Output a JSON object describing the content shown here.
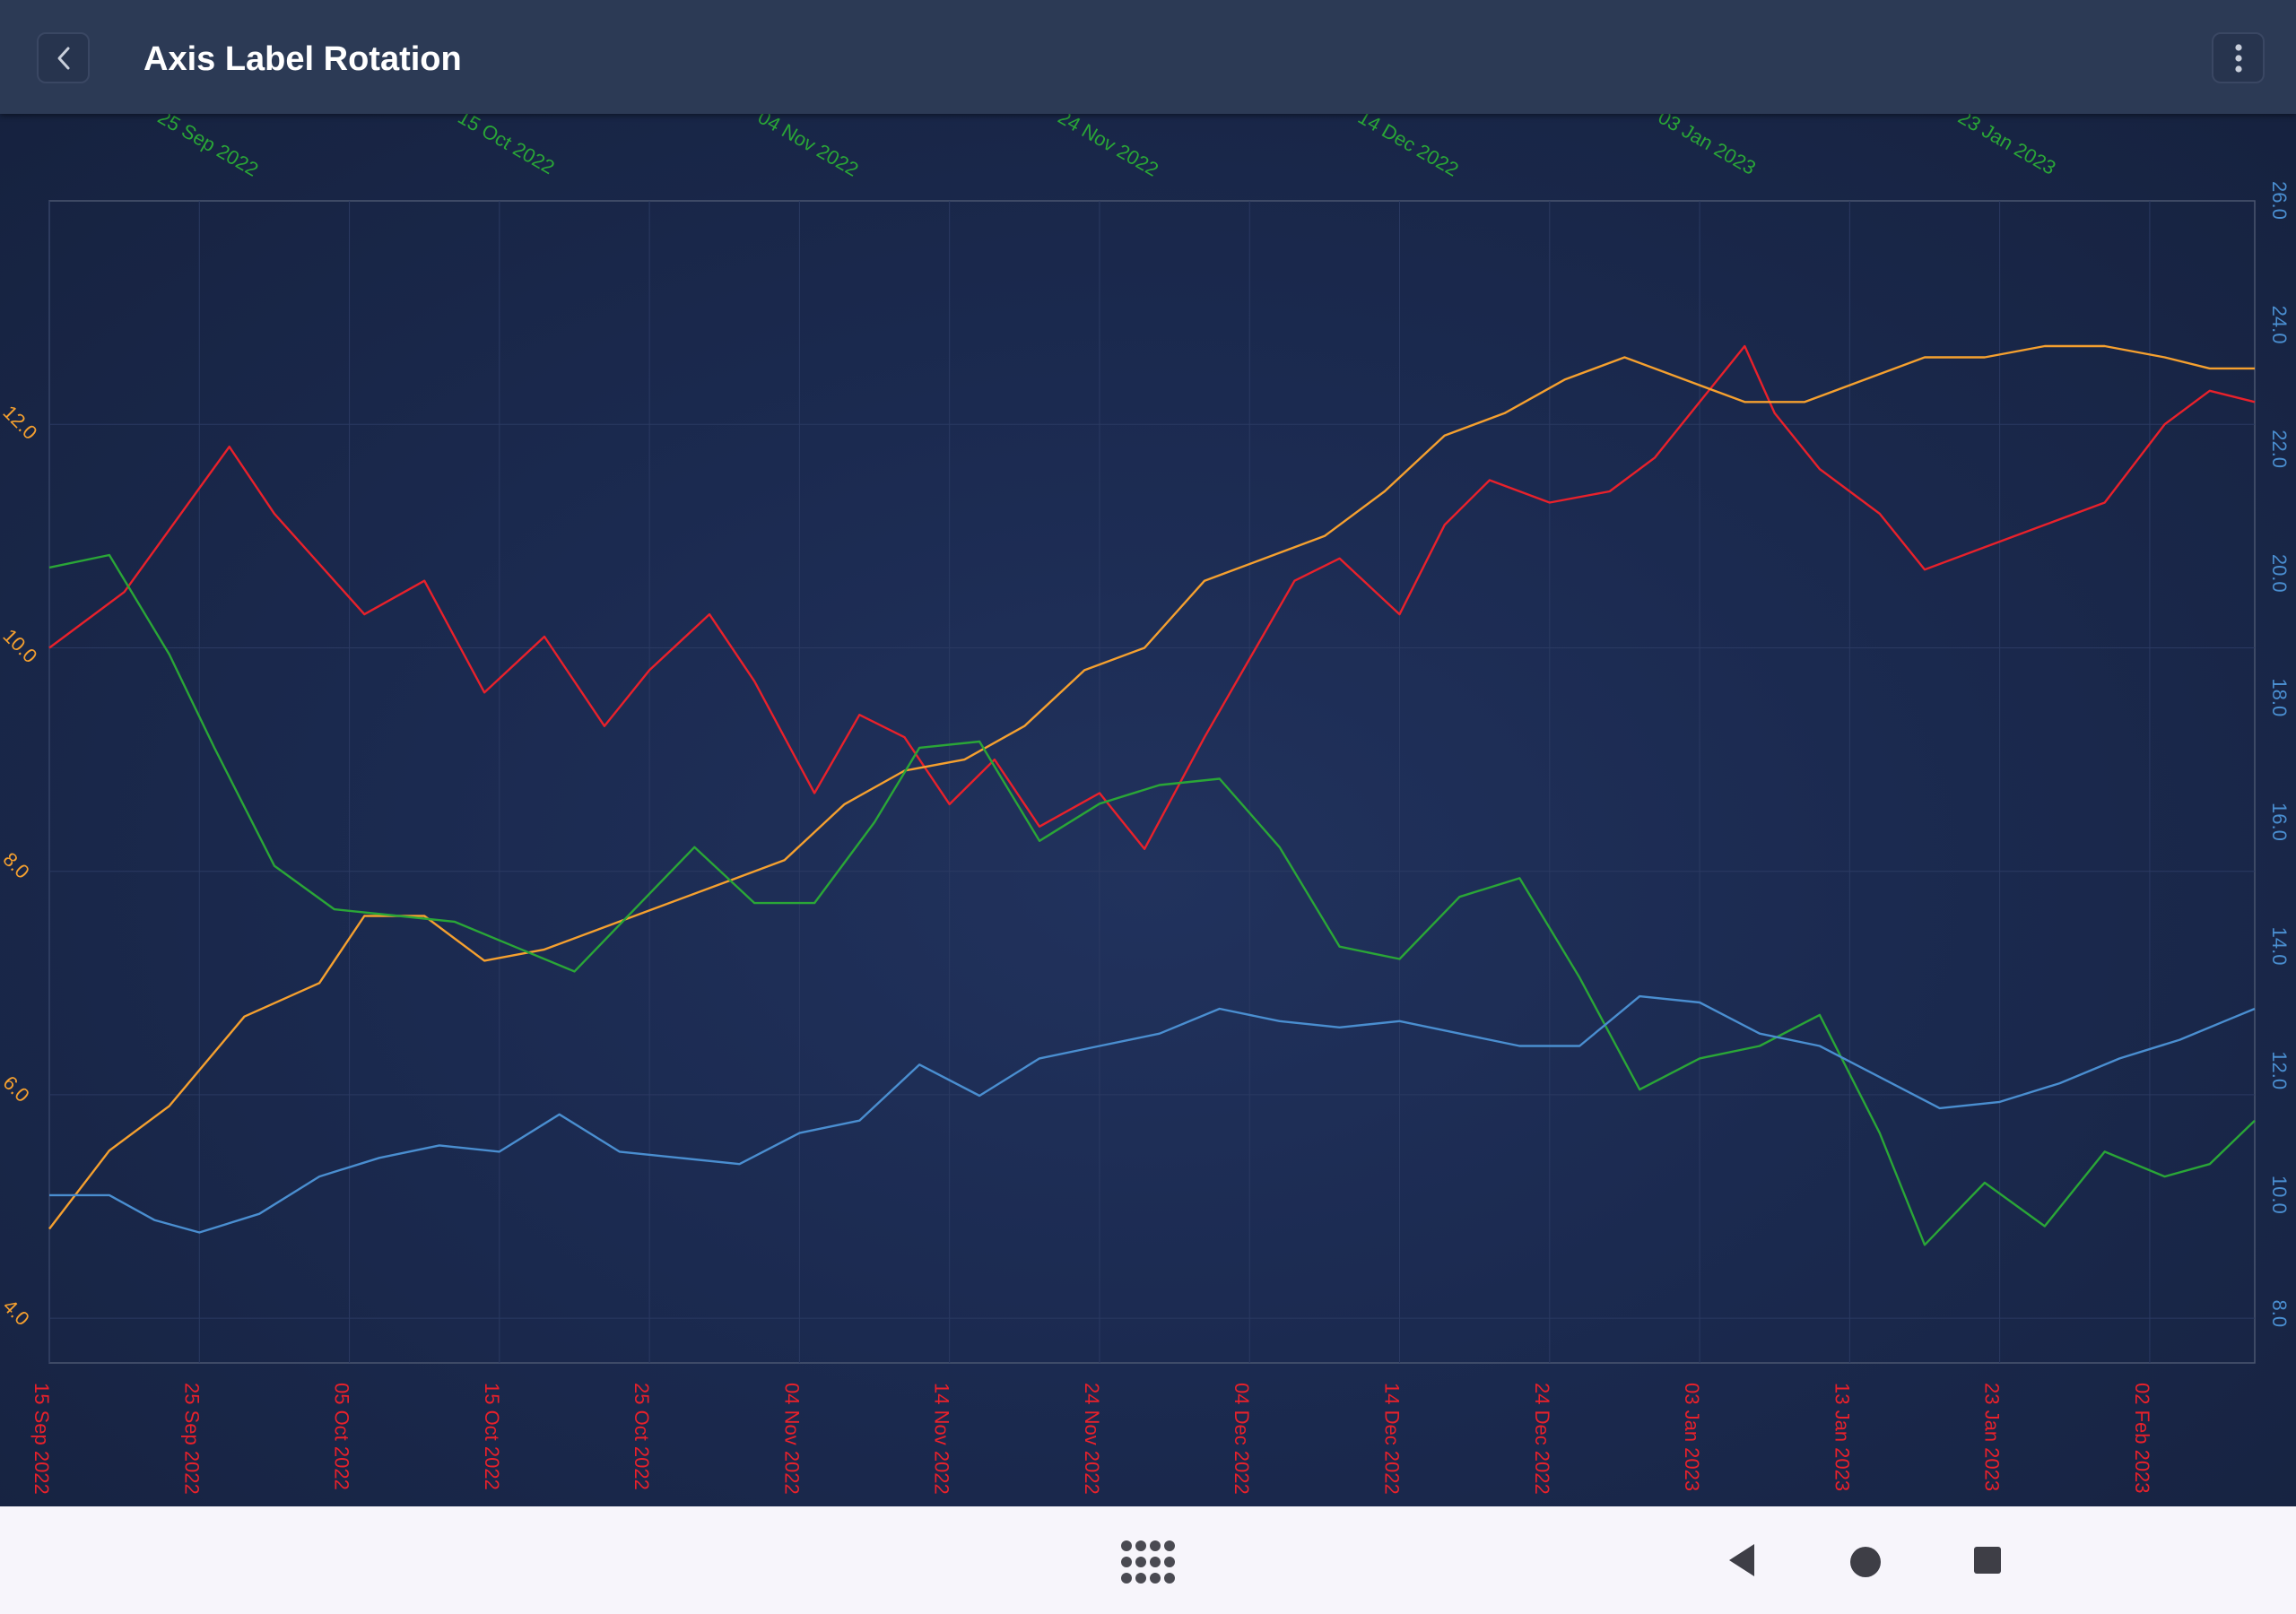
{
  "app_bar": {
    "title": "Axis Label Rotation",
    "back_icon": "chevron-left-icon",
    "menu_icon": "more-vertical-icon"
  },
  "nav_bar": {
    "icons": [
      "apps-grid-icon",
      "back-triangle-icon",
      "home-circle-icon",
      "recents-square-icon"
    ]
  },
  "colors": {
    "app_bar": "#2c3a55",
    "background": "#1b2a50",
    "red": "#e8212b",
    "orange": "#f5a02f",
    "green": "#2aa637",
    "blue": "#4a8ed0"
  },
  "chart_data": {
    "type": "line",
    "title": "",
    "x_axis_bottom": {
      "type": "date",
      "label_color": "#e8212b",
      "label_rotation": "90",
      "tick_labels": [
        "15 Sep 2022",
        "25 Sep 2022",
        "05 Oct 2022",
        "15 Oct 2022",
        "25 Oct 2022",
        "04 Nov 2022",
        "14 Nov 2022",
        "24 Nov 2022",
        "04 Dec 2022",
        "14 Dec 2022",
        "24 Dec 2022",
        "03 Jan 2023",
        "13 Jan 2023",
        "23 Jan 2023",
        "02 Feb 2023"
      ],
      "range": [
        "2022-09-15",
        "2023-02-09"
      ]
    },
    "x_axis_top": {
      "type": "date",
      "label_color": "#2aa637",
      "label_rotation": "30",
      "tick_labels": [
        "25 Sep 2022",
        "15 Oct 2022",
        "04 Nov 2022",
        "24 Nov 2022",
        "14 Dec 2022",
        "03 Jan 2023",
        "23 Jan 2023"
      ]
    },
    "y_axis_left": {
      "label_color": "#f5a02f",
      "label_rotation": "45",
      "tick_labels": [
        "4.0",
        "6.0",
        "8.0",
        "10.0",
        "12.0"
      ],
      "range": [
        3.6,
        14.0
      ]
    },
    "y_axis_right": {
      "label_color": "#4a8ed0",
      "label_rotation": "90",
      "tick_labels": [
        "8.0",
        "10.0",
        "12.0",
        "14.0",
        "16.0",
        "18.0",
        "20.0",
        "22.0",
        "24.0",
        "26.0"
      ],
      "range": [
        7.3,
        26.0
      ]
    },
    "grid": true,
    "legend": "none",
    "series": [
      {
        "color": "#e8212b",
        "axis": "left",
        "x": [
          "2022-09-15",
          "2022-09-20",
          "2022-09-27",
          "2022-09-30",
          "2022-10-06",
          "2022-10-10",
          "2022-10-14",
          "2022-10-18",
          "2022-10-22",
          "2022-10-25",
          "2022-10-29",
          "2022-11-01",
          "2022-11-05",
          "2022-11-08",
          "2022-11-11",
          "2022-11-14",
          "2022-11-17",
          "2022-11-20",
          "2022-11-24",
          "2022-11-27",
          "2022-12-01",
          "2022-12-04",
          "2022-12-07",
          "2022-12-10",
          "2022-12-14",
          "2022-12-17",
          "2022-12-20",
          "2022-12-24",
          "2022-12-28",
          "2022-12-31",
          "2023-01-03",
          "2023-01-06",
          "2023-01-08",
          "2023-01-11",
          "2023-01-15",
          "2023-01-18",
          "2023-01-22",
          "2023-01-26",
          "2023-01-30",
          "2023-02-03",
          "2023-02-06",
          "2023-02-09"
        ],
        "y": [
          10.0,
          10.5,
          11.8,
          11.2,
          10.3,
          10.6,
          9.6,
          10.1,
          9.3,
          9.8,
          10.3,
          9.7,
          8.7,
          9.4,
          9.2,
          8.6,
          9.0,
          8.4,
          8.7,
          8.2,
          9.2,
          9.9,
          10.6,
          10.8,
          10.3,
          11.1,
          11.5,
          11.3,
          11.4,
          11.7,
          12.2,
          12.7,
          12.1,
          11.6,
          11.2,
          10.7,
          10.9,
          11.1,
          11.3,
          12.0,
          12.3,
          12.2
        ]
      },
      {
        "color": "#f5a02f",
        "axis": "left",
        "x": [
          "2022-09-15",
          "2022-09-19",
          "2022-09-23",
          "2022-09-28",
          "2022-10-03",
          "2022-10-06",
          "2022-10-10",
          "2022-10-14",
          "2022-10-18",
          "2022-10-22",
          "2022-10-26",
          "2022-10-30",
          "2022-11-03",
          "2022-11-07",
          "2022-11-11",
          "2022-11-15",
          "2022-11-19",
          "2022-11-23",
          "2022-11-27",
          "2022-12-01",
          "2022-12-05",
          "2022-12-09",
          "2022-12-13",
          "2022-12-17",
          "2022-12-21",
          "2022-12-25",
          "2022-12-29",
          "2023-01-02",
          "2023-01-06",
          "2023-01-10",
          "2023-01-14",
          "2023-01-18",
          "2023-01-22",
          "2023-01-26",
          "2023-01-30",
          "2023-02-03",
          "2023-02-06",
          "2023-02-09"
        ],
        "y": [
          4.8,
          5.5,
          5.9,
          6.7,
          7.0,
          7.6,
          7.6,
          7.2,
          7.3,
          7.5,
          7.7,
          7.9,
          8.1,
          8.6,
          8.9,
          9.0,
          9.3,
          9.8,
          10.0,
          10.6,
          10.8,
          11.0,
          11.4,
          11.9,
          12.1,
          12.4,
          12.6,
          12.4,
          12.2,
          12.2,
          12.4,
          12.6,
          12.6,
          12.7,
          12.7,
          12.6,
          12.5,
          12.5
        ]
      },
      {
        "color": "#2aa637",
        "axis": "right",
        "x": [
          "2022-09-15",
          "2022-09-19",
          "2022-09-23",
          "2022-09-26",
          "2022-09-30",
          "2022-10-04",
          "2022-10-08",
          "2022-10-12",
          "2022-10-16",
          "2022-10-20",
          "2022-10-24",
          "2022-10-28",
          "2022-11-01",
          "2022-11-05",
          "2022-11-09",
          "2022-11-12",
          "2022-11-16",
          "2022-11-20",
          "2022-11-24",
          "2022-11-28",
          "2022-12-02",
          "2022-12-06",
          "2022-12-10",
          "2022-12-14",
          "2022-12-18",
          "2022-12-22",
          "2022-12-26",
          "2022-12-30",
          "2023-01-03",
          "2023-01-07",
          "2023-01-11",
          "2023-01-15",
          "2023-01-18",
          "2023-01-22",
          "2023-01-26",
          "2023-01-30",
          "2023-02-03",
          "2023-02-06",
          "2023-02-09"
        ],
        "y": [
          20.1,
          20.3,
          18.7,
          17.2,
          15.3,
          14.6,
          14.5,
          14.4,
          14.0,
          13.6,
          14.6,
          15.6,
          14.7,
          14.7,
          16.0,
          17.2,
          17.3,
          15.7,
          16.3,
          16.6,
          16.7,
          15.6,
          14.0,
          13.8,
          14.8,
          15.1,
          13.5,
          11.7,
          12.2,
          12.4,
          12.9,
          11.0,
          9.2,
          10.2,
          9.5,
          10.7,
          10.3,
          10.5,
          11.2
        ]
      },
      {
        "color": "#4a8ed0",
        "axis": "right",
        "x": [
          "2022-09-15",
          "2022-09-19",
          "2022-09-22",
          "2022-09-25",
          "2022-09-29",
          "2022-10-03",
          "2022-10-07",
          "2022-10-11",
          "2022-10-15",
          "2022-10-19",
          "2022-10-23",
          "2022-10-27",
          "2022-10-31",
          "2022-11-04",
          "2022-11-08",
          "2022-11-12",
          "2022-11-16",
          "2022-11-20",
          "2022-11-24",
          "2022-11-28",
          "2022-12-02",
          "2022-12-06",
          "2022-12-10",
          "2022-12-14",
          "2022-12-18",
          "2022-12-22",
          "2022-12-26",
          "2022-12-30",
          "2023-01-03",
          "2023-01-07",
          "2023-01-11",
          "2023-01-15",
          "2023-01-19",
          "2023-01-23",
          "2023-01-27",
          "2023-01-31",
          "2023-02-04",
          "2023-02-07",
          "2023-02-09"
        ],
        "y": [
          10.0,
          10.0,
          9.6,
          9.4,
          9.7,
          10.3,
          10.6,
          10.8,
          10.7,
          11.3,
          10.7,
          10.6,
          10.5,
          11.0,
          11.2,
          12.1,
          11.6,
          12.2,
          12.4,
          12.6,
          13.0,
          12.8,
          12.7,
          12.8,
          12.6,
          12.4,
          12.4,
          13.2,
          13.1,
          12.6,
          12.4,
          11.9,
          11.4,
          11.5,
          11.8,
          12.2,
          12.5,
          12.8,
          13.0
        ]
      }
    ]
  }
}
